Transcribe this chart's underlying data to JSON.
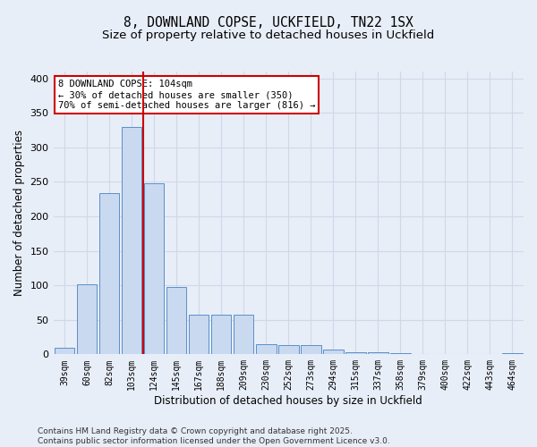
{
  "title_line1": "8, DOWNLAND COPSE, UCKFIELD, TN22 1SX",
  "title_line2": "Size of property relative to detached houses in Uckfield",
  "xlabel": "Distribution of detached houses by size in Uckfield",
  "ylabel": "Number of detached properties",
  "categories": [
    "39sqm",
    "60sqm",
    "82sqm",
    "103sqm",
    "124sqm",
    "145sqm",
    "167sqm",
    "188sqm",
    "209sqm",
    "230sqm",
    "252sqm",
    "273sqm",
    "294sqm",
    "315sqm",
    "337sqm",
    "358sqm",
    "379sqm",
    "400sqm",
    "422sqm",
    "443sqm",
    "464sqm"
  ],
  "values": [
    9,
    102,
    234,
    330,
    248,
    97,
    57,
    57,
    57,
    15,
    14,
    14,
    7,
    3,
    3,
    2,
    1,
    0,
    0,
    1,
    2
  ],
  "bar_color": "#c9d9f0",
  "bar_edge_color": "#5b8fc9",
  "red_line_index": 3,
  "annotation_text": "8 DOWNLAND COPSE: 104sqm\n← 30% of detached houses are smaller (350)\n70% of semi-detached houses are larger (816) →",
  "annotation_box_color": "#ffffff",
  "annotation_box_edge_color": "#cc0000",
  "red_line_color": "#cc0000",
  "grid_color": "#d0d8e8",
  "background_color": "#e8eef8",
  "footer_text": "Contains HM Land Registry data © Crown copyright and database right 2025.\nContains public sector information licensed under the Open Government Licence v3.0.",
  "ylim": [
    0,
    410
  ],
  "yticks": [
    0,
    50,
    100,
    150,
    200,
    250,
    300,
    350,
    400
  ],
  "title_fontsize": 10.5,
  "subtitle_fontsize": 9.5,
  "tick_fontsize": 7,
  "ylabel_fontsize": 8.5,
  "xlabel_fontsize": 8.5,
  "footer_fontsize": 6.5,
  "annotation_fontsize": 7.5
}
